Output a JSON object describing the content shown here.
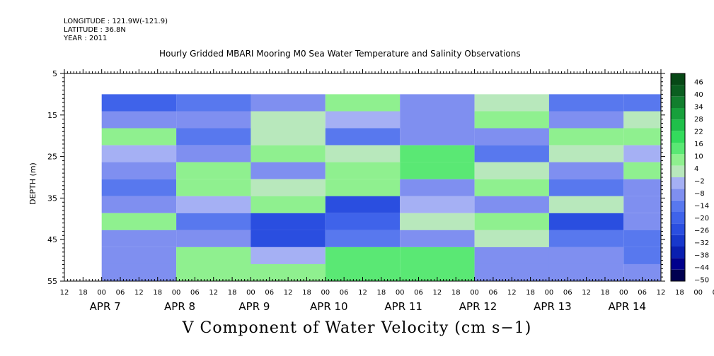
{
  "header": {
    "longitude": "LONGITUDE : 121.9W(-121.9)",
    "latitude": "LATITUDE : 36.8N",
    "year": "YEAR : 2011"
  },
  "chart_data": {
    "type": "heatmap",
    "title": "Hourly Gridded MBARI Mooring M0 Sea Water Temperature and Salinity Observations",
    "ylabel": "DEPTH (m)",
    "xlabel": "V Component of Water Velocity (cm s−1)",
    "y_reversed": true,
    "ylim": [
      5,
      55
    ],
    "yticks": [
      5,
      15,
      25,
      35,
      45,
      55
    ],
    "hour_ticks": [
      "12",
      "18",
      "00",
      "06",
      "12",
      "18",
      "00",
      "06",
      "12",
      "18",
      "00",
      "06",
      "12",
      "18",
      "00",
      "06",
      "12",
      "18",
      "00",
      "06",
      "12",
      "18",
      "00",
      "06",
      "12",
      "18",
      "00",
      "06",
      "12",
      "18",
      "00",
      "06",
      "12",
      "18",
      "00",
      "06",
      "12"
    ],
    "x_range_hours": [
      "2011-04-06 12:00",
      "2011-04-14 12:00"
    ],
    "data_start": "2011-04-07 00:00",
    "day_labels": [
      "APR  7",
      "APR  8",
      "APR  9",
      "APR 10",
      "APR 11",
      "APR 12",
      "APR 13",
      "APR 14"
    ],
    "day_label_hours": [
      "2011-04-07 00:00",
      "2011-04-08 00:00",
      "2011-04-09 00:00",
      "2011-04-10 00:00",
      "2011-04-11 00:00",
      "2011-04-12 00:00",
      "2011-04-13 00:00",
      "2011-04-14 00:00"
    ],
    "depth_top_of_data": 10,
    "colorbar": {
      "levels": [
        "46",
        "40",
        "34",
        "28",
        "22",
        "16",
        "10",
        "4",
        "−2",
        "−8",
        "−14",
        "−20",
        "−26",
        "−32",
        "−38",
        "−44",
        "−50"
      ],
      "min": -50,
      "max": 50
    },
    "colors": {
      "strong_positive": "#0b4a12",
      "positive": "#2fd160",
      "weak_positive": "#9cf0a8",
      "near_zero": "#b8c4f6",
      "negative": "#8090ee",
      "strong_negative": "#1530c8",
      "very_negative": "#000060"
    },
    "columns": [
      {
        "day": "2011-04-07",
        "values": [
          -20,
          -9,
          8,
          -5,
          -10,
          -15,
          -7,
          8,
          -8,
          -10,
          -9
        ]
      },
      {
        "day": "2011-04-08",
        "values": [
          -14,
          -9,
          -16,
          -11,
          6,
          11,
          -3,
          -14,
          -11,
          6,
          7
        ]
      },
      {
        "day": "2011-04-09",
        "values": [
          -7,
          3,
          2,
          7,
          -9,
          5,
          9,
          -23,
          -24,
          -3,
          8
        ]
      },
      {
        "day": "2011-04-10",
        "values": [
          8,
          -3,
          -12,
          5,
          10,
          6,
          -23,
          -20,
          -14,
          14,
          16
        ]
      },
      {
        "day": "2011-04-11",
        "values": [
          -10,
          -6,
          -11,
          14,
          12,
          -9,
          -5,
          4,
          -11,
          15,
          16
        ]
      },
      {
        "day": "2011-04-12",
        "values": [
          3,
          8,
          -10,
          -12,
          5,
          8,
          -8,
          9,
          4,
          -11,
          -7
        ]
      },
      {
        "day": "2011-04-13",
        "values": [
          -14,
          -9,
          8,
          5,
          -10,
          -12,
          5,
          -23,
          -13,
          -6,
          -8
        ]
      },
      {
        "day": "2011-04-14",
        "values": [
          -15,
          2,
          10,
          -4,
          7,
          -6,
          -8,
          -9,
          -12,
          -13,
          -9
        ]
      }
    ]
  }
}
